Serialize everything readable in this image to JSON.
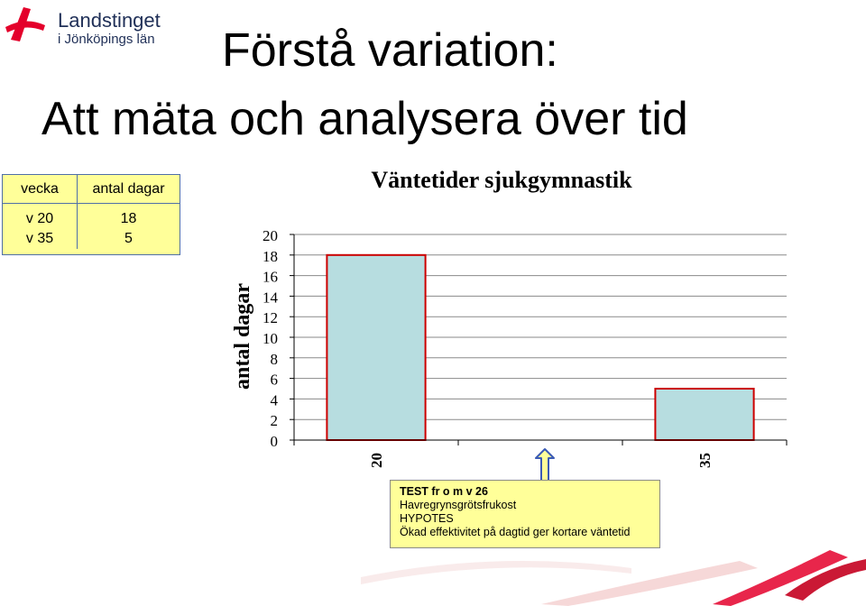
{
  "logo": {
    "line1": "Landstinget",
    "line2": "i Jönköpings län",
    "icon": "ribbon-logo-icon",
    "color": "#e4002b"
  },
  "title": {
    "line1": "Förstå variation:",
    "line2": "Att mäta och analysera över tid"
  },
  "table": {
    "headers": [
      "vecka",
      "antal dagar"
    ],
    "rows": [
      [
        "v 20",
        "18"
      ],
      [
        "v 35",
        "5"
      ]
    ]
  },
  "chart_data": {
    "type": "bar",
    "title": "Väntetider sjukgymnastik",
    "ylabel": "antal dagar",
    "xlabel": "",
    "categories": [
      "v 20",
      "",
      "v 35"
    ],
    "values": [
      18,
      null,
      5
    ],
    "ylim": [
      0,
      20
    ],
    "yticks": [
      0,
      2,
      4,
      6,
      8,
      10,
      12,
      14,
      16,
      18,
      20
    ],
    "grid": true,
    "bar_fill": "#b7dde0",
    "bar_stroke": "#cc0000"
  },
  "x_labels_visible": [
    "20",
    "35"
  ],
  "callout": {
    "line1": "TEST fr o m v 26",
    "line2": "Havregrynsgrötsfrukost",
    "line3": "HYPOTES",
    "line4": "Ökad effektivitet på dagtid ger kortare väntetid"
  }
}
